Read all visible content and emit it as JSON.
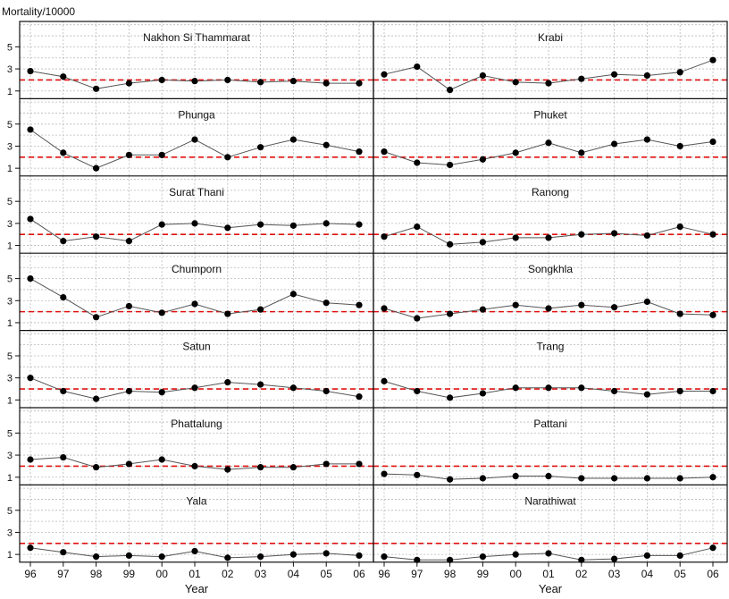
{
  "chart_data": {
    "type": "line",
    "ylabel": "Mortality/10000",
    "xlabel": "Year",
    "x_categories": [
      "96",
      "97",
      "98",
      "99",
      "00",
      "01",
      "02",
      "03",
      "04",
      "05",
      "06"
    ],
    "y_ticks": [
      1,
      3,
      5
    ],
    "ylim": [
      0.3,
      7.3
    ],
    "grid": true,
    "reference_line": {
      "value": 2.0,
      "color": "#e01010",
      "style": "dashed"
    },
    "line_color": "#555555",
    "marker_color": "#000000",
    "panels": [
      {
        "name": "Nakhon Si Thammarat",
        "values": [
          2.8,
          2.3,
          1.2,
          1.7,
          2.0,
          1.9,
          2.0,
          1.8,
          1.9,
          1.7,
          1.7
        ]
      },
      {
        "name": "Krabi",
        "values": [
          2.5,
          3.2,
          1.1,
          2.4,
          1.8,
          1.7,
          2.1,
          2.5,
          2.4,
          2.7,
          3.8
        ]
      },
      {
        "name": "Phunga",
        "values": [
          4.5,
          2.4,
          1.0,
          2.2,
          2.2,
          3.6,
          2.0,
          2.9,
          3.6,
          3.1,
          2.5
        ]
      },
      {
        "name": "Phuket",
        "values": [
          2.5,
          1.5,
          1.3,
          1.8,
          2.4,
          3.3,
          2.4,
          3.2,
          3.6,
          3.0,
          3.4
        ]
      },
      {
        "name": "Surat Thani",
        "values": [
          3.4,
          1.4,
          1.8,
          1.4,
          2.9,
          3.0,
          2.6,
          2.9,
          2.8,
          3.0,
          2.9
        ]
      },
      {
        "name": "Ranong",
        "values": [
          1.8,
          2.7,
          1.1,
          1.3,
          1.7,
          1.7,
          2.0,
          2.1,
          1.9,
          2.7,
          2.0
        ]
      },
      {
        "name": "Chumporn",
        "values": [
          5.0,
          3.3,
          1.5,
          2.5,
          1.9,
          2.7,
          1.8,
          2.2,
          3.6,
          2.8,
          2.6
        ]
      },
      {
        "name": "Songkhla",
        "values": [
          2.3,
          1.4,
          1.8,
          2.2,
          2.6,
          2.3,
          2.6,
          2.4,
          2.9,
          1.8,
          1.7
        ]
      },
      {
        "name": "Satun",
        "values": [
          3.0,
          1.8,
          1.1,
          1.8,
          1.7,
          2.1,
          2.6,
          2.4,
          2.1,
          1.8,
          1.3
        ]
      },
      {
        "name": "Trang",
        "values": [
          2.7,
          1.8,
          1.2,
          1.6,
          2.1,
          2.1,
          2.1,
          1.8,
          1.5,
          1.8,
          1.8
        ]
      },
      {
        "name": "Phattalung",
        "values": [
          2.6,
          2.8,
          1.9,
          2.2,
          2.6,
          2.0,
          1.7,
          1.9,
          1.9,
          2.2,
          2.2
        ]
      },
      {
        "name": "Pattani",
        "values": [
          1.3,
          1.2,
          0.8,
          0.9,
          1.1,
          1.1,
          0.9,
          0.9,
          0.9,
          0.9,
          1.0
        ]
      },
      {
        "name": "Yala",
        "values": [
          1.6,
          1.2,
          0.8,
          0.9,
          0.8,
          1.3,
          0.7,
          0.8,
          1.0,
          1.1,
          0.9
        ]
      },
      {
        "name": "Narathiwat",
        "values": [
          0.8,
          0.5,
          0.5,
          0.8,
          1.0,
          1.1,
          0.5,
          0.6,
          0.9,
          0.9,
          1.6
        ]
      }
    ]
  }
}
